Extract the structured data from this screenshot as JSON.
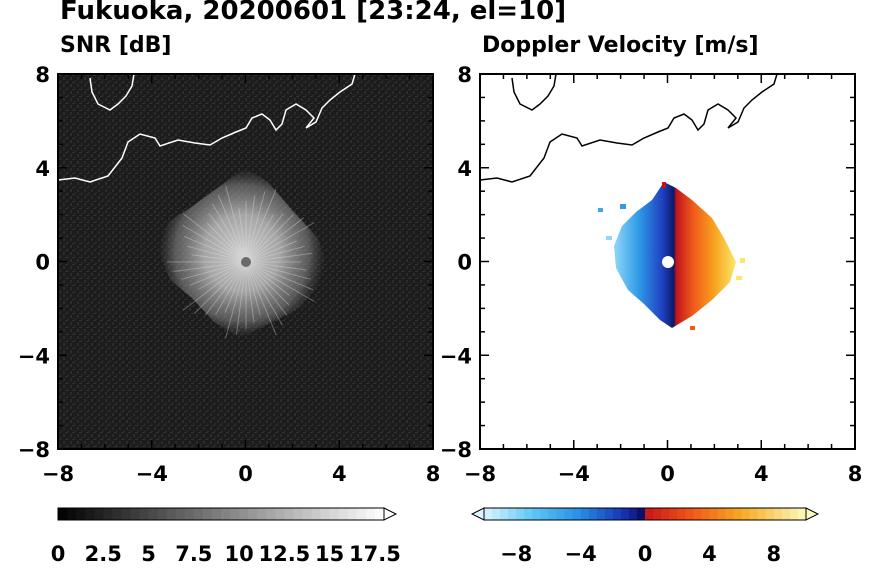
{
  "title": "Fukuoka, 20200601 [23:24, el=10]",
  "chart_data": [
    {
      "type": "heatmap",
      "title": "SNR [dB]",
      "xlim": [
        -8,
        8
      ],
      "ylim": [
        -8,
        8
      ],
      "xticks": [
        "−8",
        "−4",
        "0",
        "4",
        "8"
      ],
      "yticks": [
        "8",
        "4",
        "0",
        "−4",
        "−8"
      ],
      "colorbar": {
        "range": [
          0,
          18
        ],
        "labels": [
          "0",
          "2.5",
          "5",
          "7.5",
          "10",
          "12.5",
          "15",
          "17.5"
        ],
        "extend": "max",
        "colormap": "grayscale"
      }
    },
    {
      "type": "heatmap",
      "title": "Doppler Velocity [m/s]",
      "xlim": [
        -8,
        8
      ],
      "ylim": [
        -8,
        8
      ],
      "xticks": [
        "−8",
        "−4",
        "0",
        "4",
        "8"
      ],
      "yticks": [
        "8",
        "4",
        "0",
        "−4",
        "−8"
      ],
      "colorbar": {
        "range": [
          -10,
          10
        ],
        "labels": [
          "−8",
          "−4",
          "0",
          "4",
          "8"
        ],
        "extend": "both",
        "colormap": "blue-red"
      }
    }
  ]
}
